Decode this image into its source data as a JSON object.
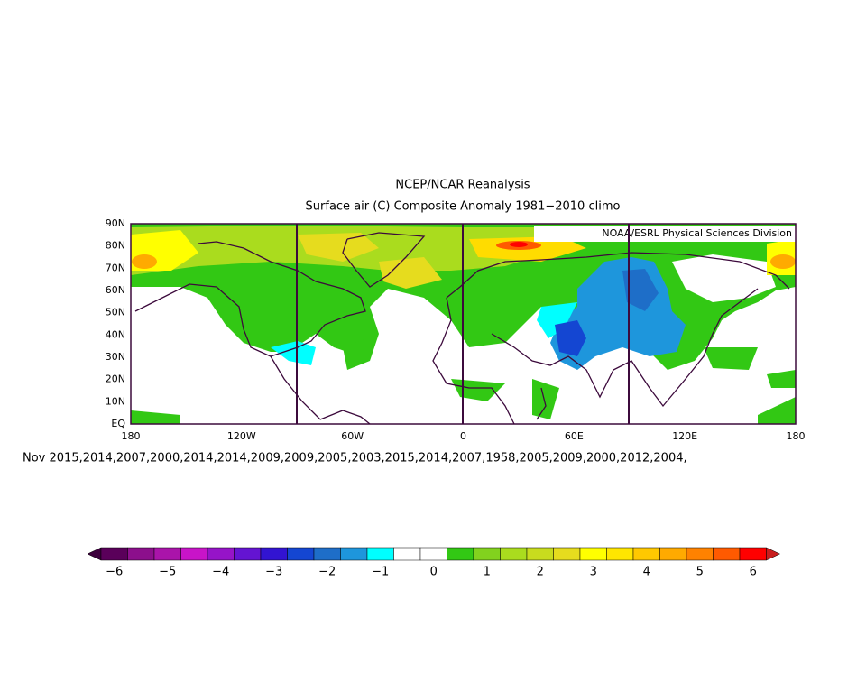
{
  "header": {
    "title": "NCEP/NCAR Reanalysis",
    "subtitle": "Surface air (C) Composite Anomaly 1981−2010 climo"
  },
  "map": {
    "credit": "NOAA/ESRL Physical Sciences Division",
    "lat_labels": [
      "90N",
      "80N",
      "70N",
      "60N",
      "50N",
      "40N",
      "30N",
      "20N",
      "10N",
      "EQ"
    ],
    "lon_labels": [
      "180",
      "120W",
      "60W",
      "0",
      "60E",
      "120E",
      "180"
    ]
  },
  "caption": "Nov 2015,2014,2007,2000,2014,2014,2009,2009,2005,2003,2015,2014,2007,1958,2005,2009,2000,2012,2004,",
  "colorbar": {
    "low_color": "#3c003c",
    "high_color": "#c81e1e",
    "colors": [
      "#5a005a",
      "#8c0f8c",
      "#aa14aa",
      "#c814c8",
      "#9614c8",
      "#6414d2",
      "#3214d2",
      "#1446d2",
      "#1e6ec8",
      "#1e96dc",
      "#00ffff",
      "#ffffff",
      "#ffffff",
      "#32c814",
      "#82d21e",
      "#aadc1e",
      "#c8dc1e",
      "#e6dc1e",
      "#ffff00",
      "#ffe600",
      "#ffc800",
      "#ffaa00",
      "#ff8200",
      "#ff5a00",
      "#ff0000"
    ],
    "labels": [
      "−6",
      "−5",
      "−4",
      "−3",
      "−2",
      "−1",
      "0",
      "1",
      "2",
      "3",
      "4",
      "5",
      "6"
    ]
  }
}
